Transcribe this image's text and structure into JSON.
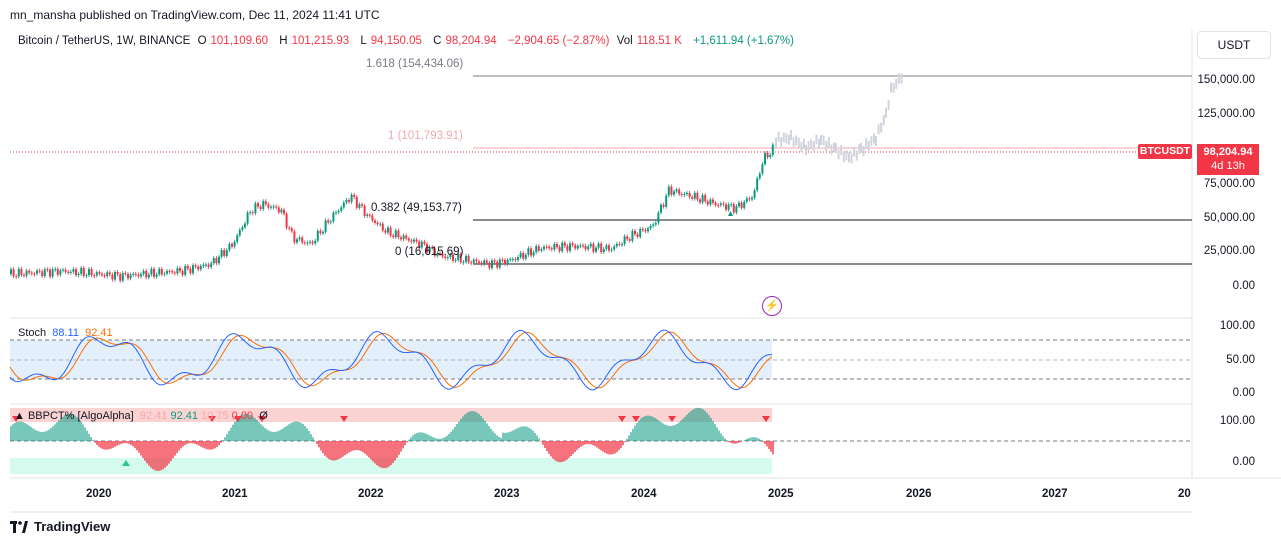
{
  "header": {
    "publish_line": "mn_mansha published on TradingView.com, Dec 11, 2024 11:41 UTC"
  },
  "symbol": {
    "name": "Bitcoin / TetherUS, 1W, BINANCE",
    "open_label": "O",
    "open": "101,109.60",
    "high_label": "H",
    "high": "101,215.93",
    "low_label": "L",
    "low": "94,150.05",
    "close_label": "C",
    "close": "98,204.94",
    "change": "−2,904.65 (−2.87%)",
    "vol_label": "Vol",
    "vol": "118.51 K",
    "vol_change": "+1,611.94 (+1.67%)"
  },
  "currency": "USDT",
  "price_axis": [
    "150,000.00",
    "125,000.00",
    "75,000.00",
    "50,000.00",
    "25,000.00",
    "0.00"
  ],
  "current_price": {
    "ticker": "BTCUSDT",
    "value": "98,204.94",
    "countdown": "4d 13h"
  },
  "fib_levels": [
    {
      "label": "1.618 (154,434.06)",
      "color": "#787b86"
    },
    {
      "label": "1 (101,793.91)",
      "color": "#f4a7b0"
    },
    {
      "label": "0.382 (49,153.77)",
      "color": "#131722"
    },
    {
      "label": "0 (16,615.69)",
      "color": "#131722"
    }
  ],
  "stoch": {
    "name": "Stoch",
    "k": "88.11",
    "d": "92.41",
    "k_color": "#2962ff",
    "d_color": "#ff6d00",
    "axis": [
      "100.00",
      "50.00",
      "0.00"
    ]
  },
  "bbpct": {
    "name": "BBPCT% [AlgoAlpha]",
    "v1": "92.41",
    "v2": "92.41",
    "v3": "10.75",
    "v4": "0.00",
    "v5": "Ø",
    "axis": [
      "100.00",
      "0.00"
    ]
  },
  "time_axis": [
    "2020",
    "2021",
    "2022",
    "2023",
    "2024",
    "2025",
    "2026",
    "2027",
    "20"
  ],
  "footer": {
    "brand": "TradingView"
  },
  "colors": {
    "up": "#089981",
    "down": "#f23645",
    "stoch_band": "#e3f0fc"
  },
  "icons": {
    "alert": "lightning-icon",
    "logo": "tradingview-logo-icon"
  }
}
